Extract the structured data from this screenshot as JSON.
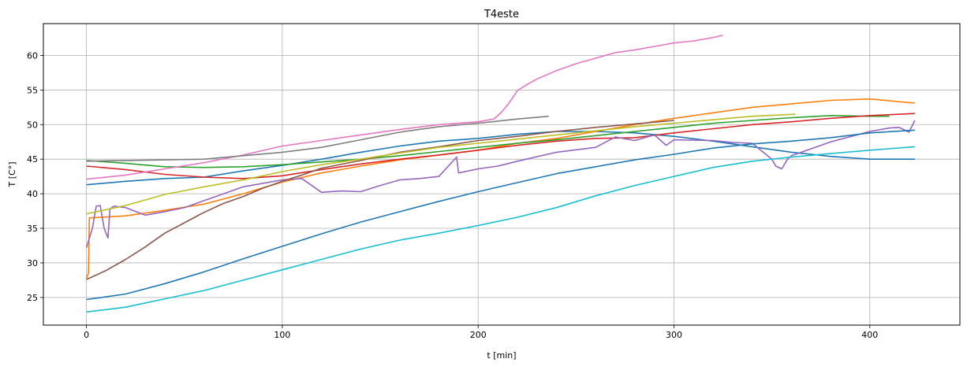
{
  "chart_data": {
    "type": "line",
    "title": "T4este",
    "xlabel": "t [min]",
    "ylabel": "T [C°]",
    "xlim": [
      -22,
      446
    ],
    "ylim": [
      21,
      64.6
    ],
    "xticks": [
      0,
      100,
      200,
      300,
      400
    ],
    "yticks": [
      25,
      30,
      35,
      40,
      45,
      50,
      55,
      60
    ],
    "grid": true,
    "legend": "none",
    "series": [
      {
        "color": "#1f77b4",
        "x": [
          0,
          20,
          40,
          60,
          80,
          100,
          120,
          140,
          160,
          180,
          200,
          220,
          240,
          260,
          280,
          300,
          320,
          340,
          360,
          380,
          400,
          423
        ],
        "y": [
          41.3,
          41.8,
          42.2,
          42.4,
          43.3,
          44.1,
          45.0,
          46.0,
          46.9,
          47.6,
          48.0,
          48.6,
          49.0,
          49.0,
          48.8,
          48.3,
          47.6,
          46.8,
          46.0,
          45.4,
          45.0,
          45.0
        ]
      },
      {
        "color": "#ff7f0e",
        "x": [
          0,
          1,
          1.5,
          20,
          40,
          60,
          80,
          100,
          120,
          140,
          160,
          180,
          200,
          220,
          240,
          260,
          280,
          300,
          320,
          340,
          360,
          380,
          400,
          423
        ],
        "y": [
          27.8,
          28.5,
          36.5,
          36.8,
          37.6,
          38.5,
          40.0,
          41.7,
          43.0,
          44.0,
          44.9,
          45.6,
          46.3,
          47.3,
          48.0,
          49.0,
          50.0,
          50.9,
          51.7,
          52.5,
          53.0,
          53.5,
          53.7,
          53.1
        ]
      },
      {
        "color": "#2ca02c",
        "x": [
          0,
          20,
          40,
          60,
          80,
          100,
          120,
          140,
          160,
          180,
          200,
          220,
          240,
          260,
          280,
          300,
          320,
          340,
          360,
          380,
          400,
          410
        ],
        "y": [
          44.8,
          44.4,
          43.9,
          43.8,
          43.9,
          44.2,
          44.6,
          45.0,
          45.5,
          46.1,
          46.7,
          47.3,
          47.8,
          48.4,
          49.0,
          49.6,
          50.2,
          50.6,
          51.0,
          51.3,
          51.2,
          51.2
        ]
      },
      {
        "color": "#d62728",
        "x": [
          0,
          20,
          40,
          60,
          80,
          100,
          120,
          140,
          160,
          180,
          200,
          220,
          240,
          260,
          280,
          300,
          320,
          340,
          360,
          380,
          400,
          423
        ],
        "y": [
          44.0,
          43.5,
          42.8,
          42.4,
          42.2,
          42.6,
          43.5,
          44.3,
          45.0,
          45.6,
          46.3,
          47.0,
          47.6,
          48.0,
          48.1,
          48.8,
          49.4,
          50.0,
          50.4,
          50.9,
          51.3,
          51.6
        ]
      },
      {
        "color": "#9467bd",
        "x": [
          0,
          3,
          5,
          7,
          9,
          11,
          12,
          14,
          20,
          30,
          40,
          50,
          60,
          70,
          80,
          90,
          100,
          110,
          120,
          130,
          140,
          150,
          160,
          170,
          180,
          189,
          190,
          200,
          210,
          220,
          240,
          260,
          270,
          280,
          290,
          296,
          300,
          320,
          330,
          340,
          350,
          352,
          355,
          358,
          360,
          370,
          380,
          400,
          410,
          415,
          420,
          423
        ],
        "y": [
          32.2,
          35.0,
          38.2,
          38.3,
          35.0,
          33.6,
          37.8,
          38.2,
          38.0,
          36.9,
          37.4,
          38.0,
          39.0,
          40.0,
          41.0,
          41.5,
          42.0,
          42.2,
          40.2,
          40.4,
          40.3,
          41.2,
          42.0,
          42.2,
          42.5,
          45.3,
          43.0,
          43.6,
          44.0,
          44.7,
          46.0,
          46.7,
          48.2,
          47.7,
          48.5,
          47.0,
          47.8,
          47.7,
          47.4,
          47.3,
          45.0,
          44.0,
          43.6,
          45.0,
          45.5,
          46.5,
          47.5,
          49.0,
          49.5,
          49.6,
          48.9,
          50.6
        ]
      },
      {
        "color": "#8c564b",
        "x": [
          0,
          10,
          20,
          30,
          40,
          50,
          60,
          70,
          80,
          90,
          100,
          110,
          120,
          140,
          160,
          180,
          200,
          220,
          240,
          260,
          280,
          300
        ],
        "y": [
          27.6,
          28.9,
          30.5,
          32.3,
          34.3,
          35.8,
          37.3,
          38.6,
          39.6,
          40.8,
          41.8,
          42.7,
          43.7,
          44.8,
          46.0,
          46.8,
          47.7,
          48.3,
          49.0,
          49.6,
          50.1,
          50.6
        ]
      },
      {
        "color": "#e377c2",
        "x": [
          0,
          20,
          40,
          60,
          80,
          100,
          120,
          140,
          160,
          180,
          200,
          208,
          212,
          216,
          220,
          225,
          230,
          240,
          250,
          260,
          270,
          280,
          290,
          300,
          310,
          320,
          325
        ],
        "y": [
          42.1,
          42.7,
          43.6,
          44.5,
          45.6,
          46.9,
          47.7,
          48.5,
          49.3,
          50.0,
          50.4,
          50.8,
          51.8,
          53.2,
          54.9,
          55.8,
          56.6,
          57.8,
          58.8,
          59.6,
          60.4,
          60.8,
          61.3,
          61.8,
          62.1,
          62.6,
          62.9
        ]
      },
      {
        "color": "#7f7f7f",
        "x": [
          0,
          20,
          40,
          60,
          80,
          100,
          120,
          140,
          160,
          180,
          200,
          210,
          220,
          236
        ],
        "y": [
          44.7,
          44.8,
          44.9,
          45.0,
          45.5,
          46.0,
          46.7,
          47.8,
          48.9,
          49.7,
          50.2,
          50.5,
          50.8,
          51.2
        ]
      },
      {
        "color": "#bcbd22",
        "x": [
          0,
          20,
          40,
          60,
          80,
          100,
          120,
          140,
          160,
          180,
          200,
          220,
          240,
          260,
          280,
          300,
          320,
          340,
          362
        ],
        "y": [
          37.1,
          38.3,
          39.9,
          41.0,
          42.0,
          43.2,
          44.2,
          45.0,
          45.9,
          46.7,
          47.3,
          47.9,
          48.5,
          49.1,
          49.7,
          50.2,
          50.7,
          51.2,
          51.5
        ]
      },
      {
        "color": "#17becf",
        "x": [
          0,
          20,
          40,
          60,
          80,
          100,
          120,
          140,
          160,
          180,
          200,
          220,
          240,
          260,
          280,
          300,
          320,
          340,
          360,
          380,
          400,
          423
        ],
        "y": [
          22.9,
          23.6,
          24.8,
          26.0,
          27.5,
          29.0,
          30.5,
          32.0,
          33.3,
          34.3,
          35.4,
          36.6,
          38.0,
          39.7,
          41.2,
          42.5,
          43.8,
          44.7,
          45.3,
          45.8,
          46.3,
          46.8
        ]
      },
      {
        "color": "#1f77b4",
        "x": [
          0,
          20,
          40,
          60,
          80,
          100,
          120,
          140,
          160,
          180,
          200,
          220,
          240,
          260,
          280,
          300,
          320,
          340,
          360,
          380,
          400,
          423
        ],
        "y": [
          24.7,
          25.5,
          27.0,
          28.7,
          30.6,
          32.4,
          34.2,
          35.9,
          37.4,
          38.9,
          40.3,
          41.6,
          42.9,
          43.9,
          44.9,
          45.7,
          46.6,
          47.2,
          47.6,
          48.1,
          48.8,
          49.2
        ]
      }
    ]
  }
}
